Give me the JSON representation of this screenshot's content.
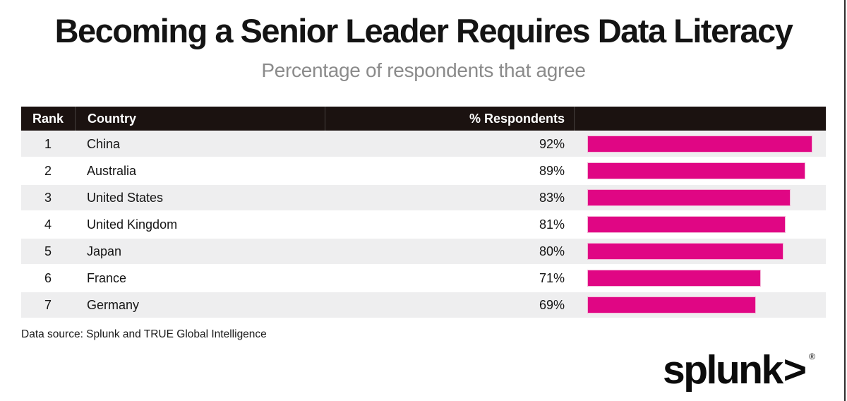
{
  "title": "Becoming a Senior Leader Requires Data Literacy",
  "subtitle": "Percentage of respondents that agree",
  "table": {
    "columns": [
      "Rank",
      "Country",
      "% Respondents"
    ],
    "rows": [
      {
        "rank": "1",
        "country": "China",
        "percent_label": "92%",
        "value": 92
      },
      {
        "rank": "2",
        "country": "Australia",
        "percent_label": "89%",
        "value": 89
      },
      {
        "rank": "3",
        "country": "United States",
        "percent_label": "83%",
        "value": 83
      },
      {
        "rank": "4",
        "country": "United Kingdom",
        "percent_label": "81%",
        "value": 81
      },
      {
        "rank": "5",
        "country": "Japan",
        "percent_label": "80%",
        "value": 80
      },
      {
        "rank": "6",
        "country": "France",
        "percent_label": "71%",
        "value": 71
      },
      {
        "rank": "7",
        "country": "Germany",
        "percent_label": "69%",
        "value": 69
      }
    ]
  },
  "footer": {
    "source": "Data source: Splunk and TRUE Global Intelligence"
  },
  "logo": {
    "text": "splunk",
    "chevron": ">",
    "registered": "®"
  },
  "colors": {
    "bar": "#e00684",
    "header_bg": "#1b1210",
    "stripe": "#eeeeef",
    "subtitle": "#8b8b8b"
  },
  "chart_data": {
    "type": "bar",
    "orientation": "horizontal",
    "categories": [
      "China",
      "Australia",
      "United States",
      "United Kingdom",
      "Japan",
      "France",
      "Germany"
    ],
    "values": [
      92,
      89,
      83,
      81,
      80,
      71,
      69
    ],
    "ranks": [
      1,
      2,
      3,
      4,
      5,
      6,
      7
    ],
    "title": "Becoming a Senior Leader Requires Data Literacy",
    "subtitle": "Percentage of respondents that agree",
    "value_format": "percent",
    "xlim": [
      0,
      100
    ],
    "bar_color": "#e00684",
    "legend": false,
    "grid": false,
    "source": "Data source: Splunk and TRUE Global Intelligence"
  }
}
